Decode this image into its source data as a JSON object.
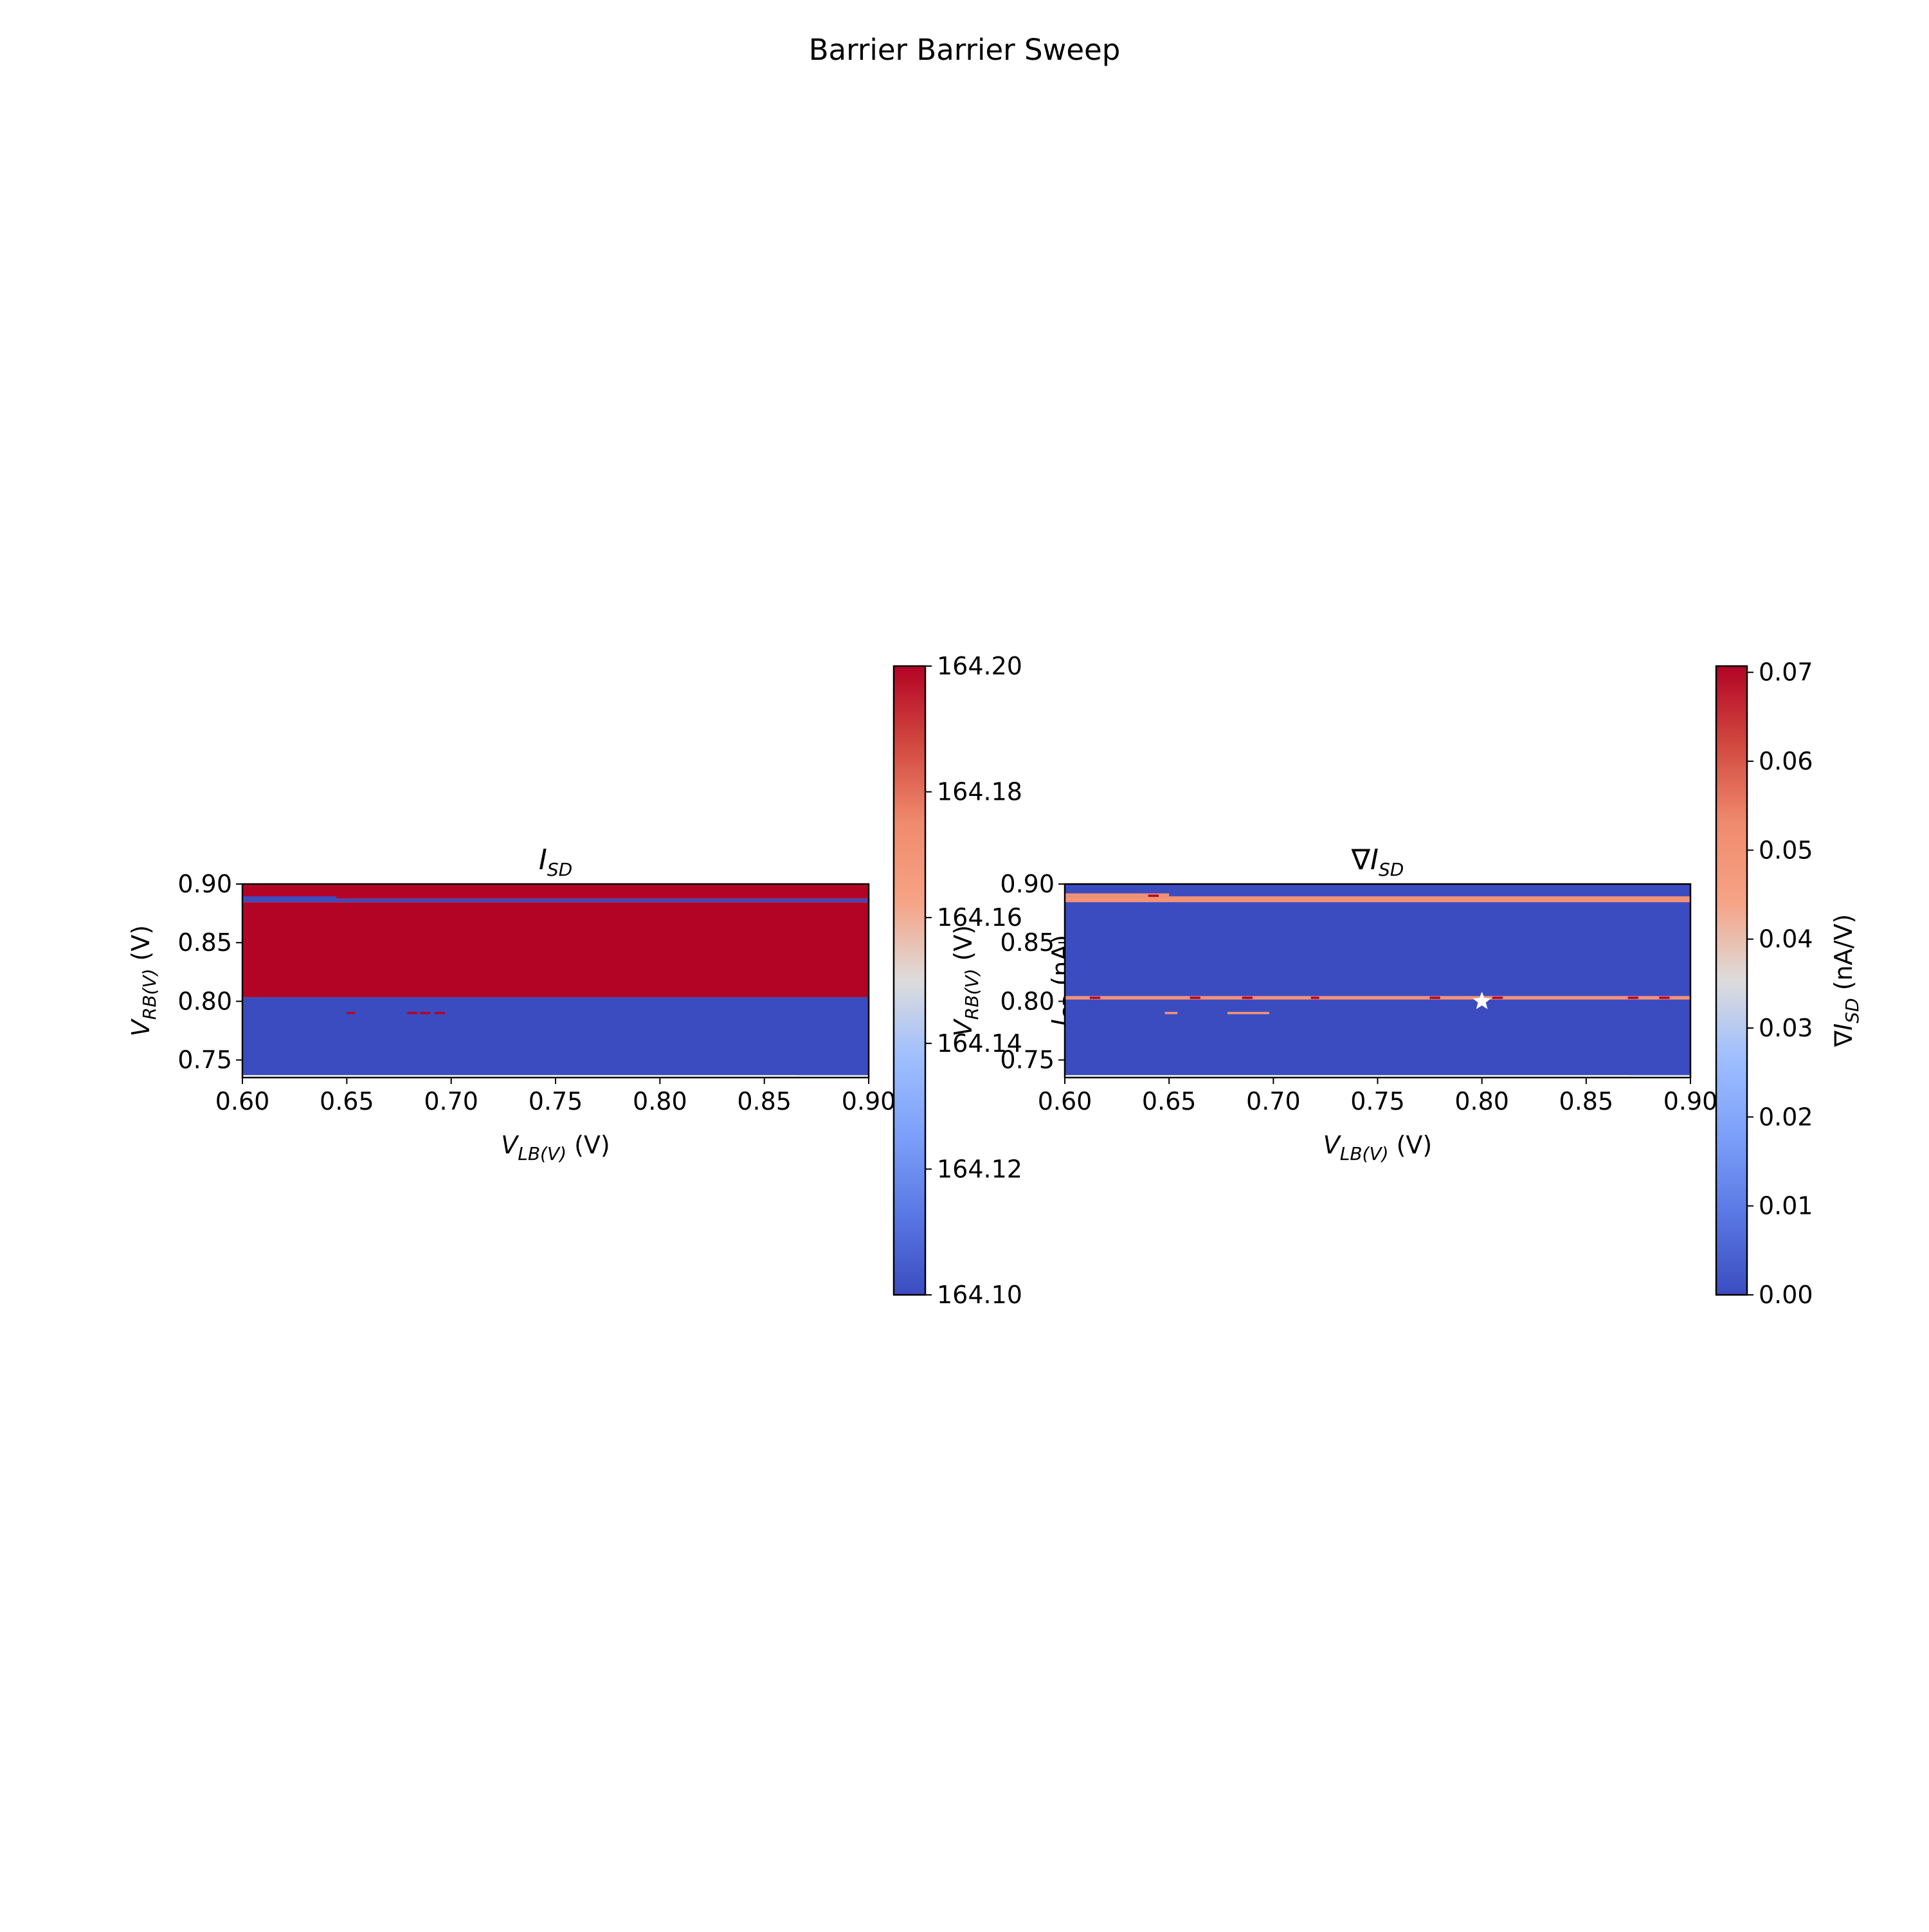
{
  "figure": {
    "suptitle": "Barrier Barrier Sweep"
  },
  "chart_data": [
    {
      "type": "heatmap",
      "title": "I_SD",
      "xlabel": "V_LB(V) (V)",
      "ylabel": "V_RB(V) (V)",
      "xlim": [
        0.6,
        0.9
      ],
      "ylim": [
        0.735,
        0.9
      ],
      "xticks": [
        "0.60",
        "0.65",
        "0.70",
        "0.75",
        "0.80",
        "0.85",
        "0.90"
      ],
      "yticks": [
        "0.75",
        "0.80",
        "0.85",
        "0.90"
      ],
      "colormap": "coolwarm",
      "colorbar": {
        "label": "I_SD (nA)",
        "range": [
          164.1,
          164.2
        ],
        "ticks": [
          "164.10",
          "164.12",
          "164.14",
          "164.16",
          "164.18",
          "164.20"
        ]
      },
      "regions": [
        {
          "y_range": [
            0.737,
            0.8035
          ],
          "value": 164.1
        },
        {
          "y_range": [
            0.8035,
            0.8845
          ],
          "value": 164.2
        },
        {
          "y_range": [
            0.8845,
            0.8875
          ],
          "value": 164.1
        },
        {
          "y_range": [
            0.8875,
            0.9
          ],
          "value": 164.2
        }
      ],
      "features": [
        {
          "x_range": [
            0.6,
            0.865
          ],
          "y_range": [
            0.735,
            0.737
          ],
          "value": null
        },
        {
          "x_range": [
            0.65,
            0.654
          ],
          "y_range": [
            0.789,
            0.791
          ],
          "value": 164.2
        },
        {
          "x_range": [
            0.679,
            0.684
          ],
          "y_range": [
            0.789,
            0.791
          ],
          "value": 164.2
        },
        {
          "x_range": [
            0.685,
            0.69
          ],
          "y_range": [
            0.789,
            0.791
          ],
          "value": 164.2
        },
        {
          "x_range": [
            0.692,
            0.697
          ],
          "y_range": [
            0.789,
            0.791
          ],
          "value": 164.2
        },
        {
          "x_range": [
            0.6,
            0.645
          ],
          "y_range": [
            0.8875,
            0.8895
          ],
          "value": 164.1
        }
      ]
    },
    {
      "type": "heatmap",
      "title": "∇I_SD",
      "xlabel": "V_LB(V) (V)",
      "ylabel": "V_RB(V) (V)",
      "xlim": [
        0.6,
        0.9
      ],
      "ylim": [
        0.735,
        0.9
      ],
      "xticks": [
        "0.60",
        "0.65",
        "0.70",
        "0.75",
        "0.80",
        "0.85",
        "0.90"
      ],
      "yticks": [
        "0.75",
        "0.80",
        "0.85",
        "0.90"
      ],
      "colormap": "coolwarm",
      "colorbar": {
        "label": "∇I_SD (nA/V)",
        "range": [
          0.0,
          0.0707
        ],
        "ticks": [
          "0.00",
          "0.01",
          "0.02",
          "0.03",
          "0.04",
          "0.05",
          "0.06",
          "0.07"
        ]
      },
      "regions": [
        {
          "y_range": [
            0.737,
            0.9
          ],
          "value": 0.0
        },
        {
          "y_range": [
            0.8015,
            0.8045
          ],
          "value": 0.05
        },
        {
          "y_range": [
            0.8845,
            0.8895
          ],
          "value": 0.05
        }
      ],
      "features": [
        {
          "x_range": [
            0.6,
            0.87
          ],
          "y_range": [
            0.735,
            0.737
          ],
          "value": null
        },
        {
          "x_range": [
            0.6,
            0.65
          ],
          "y_range": [
            0.8895,
            0.892
          ],
          "value": 0.05
        },
        {
          "x_range": [
            0.648,
            0.654
          ],
          "y_range": [
            0.789,
            0.791
          ],
          "value": 0.05
        },
        {
          "x_range": [
            0.678,
            0.698
          ],
          "y_range": [
            0.789,
            0.791
          ],
          "value": 0.05
        },
        {
          "x_range": [
            0.612,
            0.617
          ],
          "y_range": [
            0.802,
            0.804
          ],
          "value": 0.07
        },
        {
          "x_range": [
            0.66,
            0.665
          ],
          "y_range": [
            0.802,
            0.804
          ],
          "value": 0.07
        },
        {
          "x_range": [
            0.685,
            0.69
          ],
          "y_range": [
            0.802,
            0.804
          ],
          "value": 0.07
        },
        {
          "x_range": [
            0.718,
            0.722
          ],
          "y_range": [
            0.802,
            0.804
          ],
          "value": 0.07
        },
        {
          "x_range": [
            0.775,
            0.78
          ],
          "y_range": [
            0.802,
            0.804
          ],
          "value": 0.07
        },
        {
          "x_range": [
            0.805,
            0.81
          ],
          "y_range": [
            0.802,
            0.804
          ],
          "value": 0.07
        },
        {
          "x_range": [
            0.87,
            0.875
          ],
          "y_range": [
            0.802,
            0.804
          ],
          "value": 0.07
        },
        {
          "x_range": [
            0.885,
            0.89
          ],
          "y_range": [
            0.802,
            0.804
          ],
          "value": 0.07
        },
        {
          "x_range": [
            0.64,
            0.645
          ],
          "y_range": [
            0.889,
            0.891
          ],
          "value": 0.07
        }
      ],
      "marker": {
        "shape": "star",
        "x": 0.8,
        "y": 0.8,
        "color": "#ffffff"
      }
    }
  ]
}
